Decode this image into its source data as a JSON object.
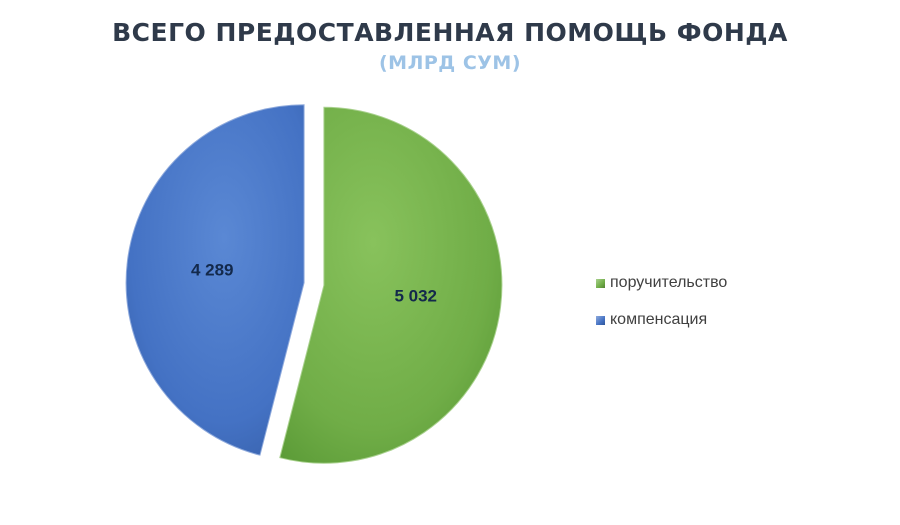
{
  "chart_data": {
    "type": "pie",
    "title": "ВСЕГО ПРЕДОСТАВЛЕННАЯ  ПОМОЩЬ ФОНДА",
    "subtitle": "(МЛРД СУМ)",
    "categories": [
      "поручительство",
      "компенсация"
    ],
    "values": [
      5032,
      4289
    ],
    "value_labels": [
      "5 032",
      "4 289"
    ],
    "colors": [
      "#70ad47",
      "#4472c4"
    ],
    "exploded": true,
    "legend_position": "right"
  }
}
